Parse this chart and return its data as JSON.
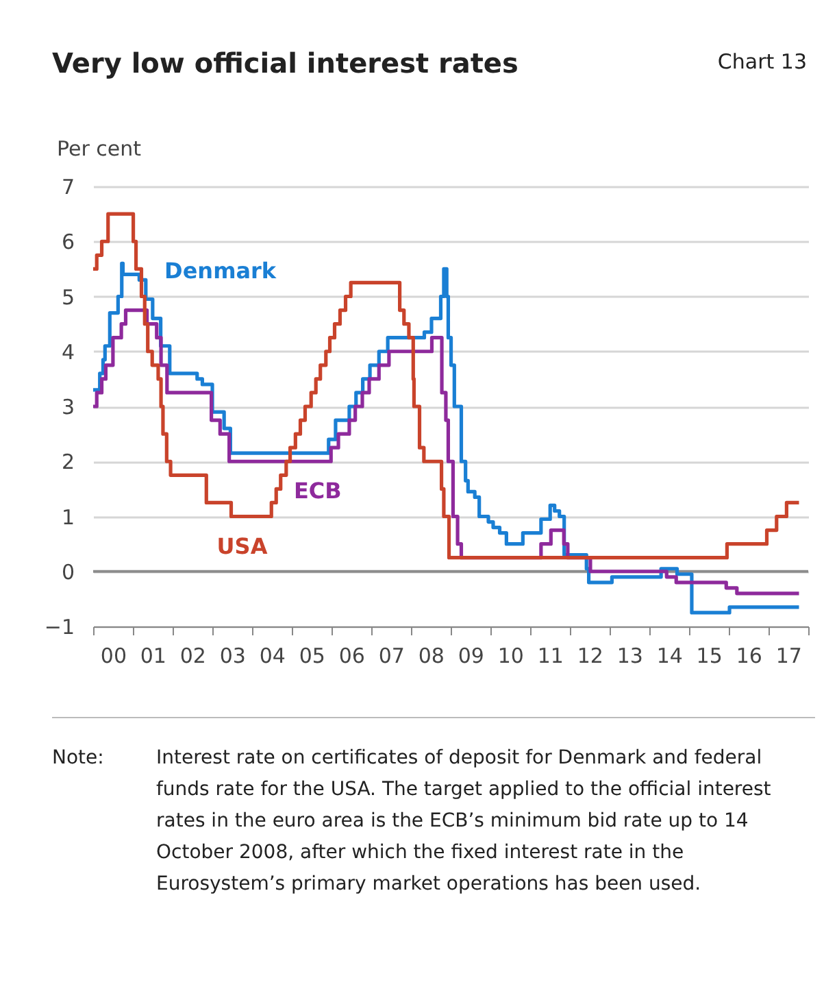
{
  "chart_data": {
    "type": "step",
    "title": "Very low official interest rates",
    "ylabel": "Per cent",
    "annotations": [
      "Chart 13",
      "Note: Interest rate on certificates of deposit for Denmark and federal funds rate for the USA. The target applied to the official interest rates in the euro area is the ECB’s minimum bid rate up to 14 October 2008, after which the fixed interest rate in the Eurosystem’s primary market operations has been used."
    ],
    "xlim": [
      "2000-01-01",
      "2018-01-01"
    ],
    "xticks": [
      {
        "value": "2000-01-01",
        "label": null
      },
      {
        "value": "2000-07-01",
        "label": "00"
      },
      {
        "value": "2001-01-01",
        "label": null
      },
      {
        "value": "2001-07-01",
        "label": "01"
      },
      {
        "value": "2002-01-01",
        "label": null
      },
      {
        "value": "2002-07-01",
        "label": "02"
      },
      {
        "value": "2003-01-01",
        "label": null
      },
      {
        "value": "2003-07-01",
        "label": "03"
      },
      {
        "value": "2004-01-01",
        "label": null
      },
      {
        "value": "2004-07-01",
        "label": "04"
      },
      {
        "value": "2005-01-01",
        "label": null
      },
      {
        "value": "2005-07-01",
        "label": "05"
      },
      {
        "value": "2006-01-01",
        "label": null
      },
      {
        "value": "2006-07-01",
        "label": "06"
      },
      {
        "value": "2007-01-01",
        "label": null
      },
      {
        "value": "2007-07-01",
        "label": "07"
      },
      {
        "value": "2008-01-01",
        "label": null
      },
      {
        "value": "2008-07-01",
        "label": "08"
      },
      {
        "value": "2009-01-01",
        "label": null
      },
      {
        "value": "2009-07-01",
        "label": "09"
      },
      {
        "value": "2010-01-01",
        "label": null
      },
      {
        "value": "2010-07-01",
        "label": "10"
      },
      {
        "value": "2011-01-01",
        "label": null
      },
      {
        "value": "2011-07-01",
        "label": "11"
      },
      {
        "value": "2012-01-01",
        "label": null
      },
      {
        "value": "2012-07-01",
        "label": "12"
      },
      {
        "value": "2013-01-01",
        "label": null
      },
      {
        "value": "2013-07-01",
        "label": "13"
      },
      {
        "value": "2014-01-01",
        "label": null
      },
      {
        "value": "2014-07-01",
        "label": "14"
      },
      {
        "value": "2015-01-01",
        "label": null
      },
      {
        "value": "2015-07-01",
        "label": "15"
      },
      {
        "value": "2016-01-01",
        "label": null
      },
      {
        "value": "2016-07-01",
        "label": "16"
      },
      {
        "value": "2017-01-01",
        "label": null
      },
      {
        "value": "2017-07-01",
        "label": "17"
      },
      {
        "value": "2018-01-01",
        "label": null
      }
    ],
    "ylim": [
      -1,
      7
    ],
    "yticks": [
      -1,
      0,
      1,
      2,
      3,
      4,
      5,
      6,
      7
    ],
    "grid": "y",
    "ref_lines": [
      {
        "axis": "y",
        "value": 0,
        "label": null,
        "color": "#8c8c8c"
      }
    ],
    "series": [
      {
        "name": "Denmark",
        "color": "#1a7fd4",
        "x": [
          "2000-01-01",
          "2000-03-02",
          "2000-04-01",
          "2000-04-19",
          "2000-06-02",
          "2000-08-17",
          "2000-09-20",
          "2000-10-01",
          "2001-02-28",
          "2001-04-29",
          "2001-07-01",
          "2001-09-13",
          "2001-12-05",
          "2002-08-14",
          "2002-10-01",
          "2003-01-01",
          "2003-04-19",
          "2003-06-16",
          "2005-12-05",
          "2006-02-07",
          "2006-06-13",
          "2006-08-14",
          "2006-10-15",
          "2006-12-20",
          "2007-03-13",
          "2007-06-02",
          "2008-05-03",
          "2008-07-08",
          "2008-10-01",
          "2008-10-29",
          "2008-11-25",
          "2008-12-09",
          "2009-01-04",
          "2009-02-03",
          "2009-04-08",
          "2009-05-17",
          "2009-06-09",
          "2009-08-10",
          "2009-09-20",
          "2009-12-13",
          "2010-01-26",
          "2010-03-27",
          "2010-05-28",
          "2010-10-26",
          "2011-04-11",
          "2011-07-04",
          "2011-08-14",
          "2011-09-27",
          "2011-11-10",
          "2012-06-02",
          "2012-06-23",
          "2013-01-22",
          "2014-04-19",
          "2014-09-13",
          "2015-01-26",
          "2016-01-08",
          "2017-10-08"
        ],
        "values": [
          3.3,
          3.6,
          3.85,
          4.1,
          4.7,
          5.0,
          5.6,
          5.4,
          5.3,
          4.95,
          4.6,
          4.1,
          3.6,
          3.5,
          3.4,
          2.9,
          2.6,
          2.15,
          2.4,
          2.75,
          3.0,
          3.25,
          3.5,
          3.75,
          4.0,
          4.25,
          4.35,
          4.6,
          5.0,
          5.5,
          5.0,
          4.25,
          3.75,
          3.0,
          2.0,
          1.65,
          1.45,
          1.35,
          1.0,
          0.9,
          0.8,
          0.7,
          0.5,
          0.7,
          0.95,
          1.2,
          1.1,
          1.0,
          0.3,
          0.05,
          -0.2,
          -0.1,
          0.05,
          -0.05,
          -0.75,
          -0.65,
          -0.65
        ]
      },
      {
        "name": "ECB",
        "color": "#8e2a9c",
        "x": [
          "2000-01-01",
          "2000-02-03",
          "2000-03-20",
          "2000-04-26",
          "2000-07-01",
          "2000-09-16",
          "2000-10-26",
          "2001-05-10",
          "2001-08-07",
          "2001-09-16",
          "2001-11-10",
          "2002-12-23",
          "2003-03-13",
          "2003-06-05",
          "2005-12-27",
          "2006-03-05",
          "2006-06-13",
          "2006-08-07",
          "2006-10-11",
          "2006-12-13",
          "2007-03-13",
          "2007-06-13",
          "2008-07-11",
          "2008-10-11",
          "2008-11-17",
          "2008-12-09",
          "2009-01-22",
          "2009-03-05",
          "2009-04-08",
          "2011-04-11",
          "2011-07-11",
          "2011-11-07",
          "2011-12-13",
          "2012-07-08",
          "2014-06-09",
          "2014-09-05",
          "2015-12-09",
          "2016-03-16",
          "2017-10-08"
        ],
        "values": [
          3.0,
          3.25,
          3.5,
          3.75,
          4.25,
          4.5,
          4.75,
          4.5,
          4.25,
          3.75,
          3.25,
          2.75,
          2.5,
          2.0,
          2.25,
          2.5,
          2.75,
          3.0,
          3.25,
          3.5,
          3.75,
          4.0,
          4.25,
          3.25,
          2.75,
          2.0,
          1.0,
          0.5,
          0.25,
          0.5,
          0.75,
          0.5,
          0.25,
          0.0,
          -0.1,
          -0.2,
          -0.3,
          -0.4,
          -0.4
        ]
      },
      {
        "name": "USA",
        "color": "#c9432b",
        "x": [
          "2000-01-01",
          "2000-02-03",
          "2000-03-20",
          "2000-05-17",
          "2001-01-04",
          "2001-01-29",
          "2001-03-20",
          "2001-04-19",
          "2001-05-17",
          "2001-06-27",
          "2001-08-21",
          "2001-09-16",
          "2001-10-04",
          "2001-11-07",
          "2001-12-13",
          "2002-11-07",
          "2003-06-23",
          "2004-06-27",
          "2004-08-10",
          "2004-09-20",
          "2004-11-10",
          "2004-12-16",
          "2005-02-03",
          "2005-03-20",
          "2005-05-03",
          "2005-06-27",
          "2005-08-10",
          "2005-09-20",
          "2005-11-10",
          "2005-12-16",
          "2006-01-29",
          "2006-03-20",
          "2006-05-10",
          "2006-06-27",
          "2007-09-20",
          "2007-10-29",
          "2007-12-13",
          "2008-01-22",
          "2008-01-29",
          "2008-03-20",
          "2008-04-29",
          "2008-10-08",
          "2008-10-29",
          "2008-12-16",
          "2015-12-16",
          "2016-12-16",
          "2017-03-16",
          "2017-06-16",
          "2017-10-08"
        ],
        "values": [
          5.5,
          5.75,
          6.0,
          6.5,
          6.0,
          5.5,
          5.0,
          4.5,
          4.0,
          3.75,
          3.5,
          3.0,
          2.5,
          2.0,
          1.75,
          1.25,
          1.0,
          1.25,
          1.5,
          1.75,
          2.0,
          2.25,
          2.5,
          2.75,
          3.0,
          3.25,
          3.5,
          3.75,
          4.0,
          4.25,
          4.5,
          4.75,
          5.0,
          5.25,
          4.75,
          4.5,
          4.25,
          3.5,
          3.0,
          2.25,
          2.0,
          1.5,
          1.0,
          0.25,
          0.5,
          0.75,
          1.0,
          1.25,
          1.25
        ]
      }
    ]
  }
}
